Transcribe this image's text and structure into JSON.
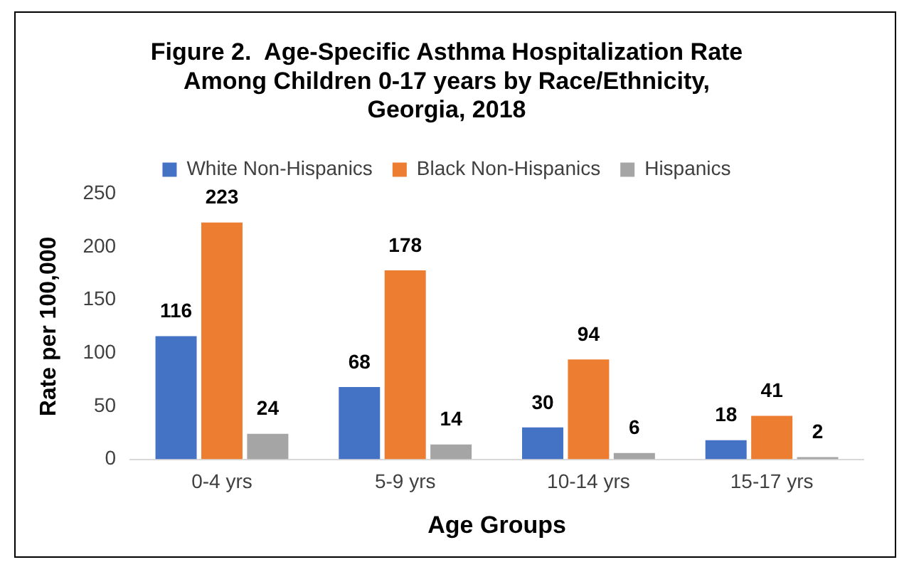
{
  "chart_data": {
    "type": "bar",
    "title": "Figure 2.  Age-Specific Asthma Hospitalization Rate\nAmong Children 0-17 years by Race/Ethnicity,\nGeorgia, 2018",
    "xlabel": "Age Groups",
    "ylabel": "Rate per 100,000",
    "categories": [
      "0-4 yrs",
      "5-9 yrs",
      "10-14 yrs",
      "15-17 yrs"
    ],
    "series": [
      {
        "name": "White Non-Hispanics",
        "color": "#4472c4",
        "values": [
          116,
          68,
          30,
          18
        ]
      },
      {
        "name": "Black Non-Hispanics",
        "color": "#ed7d31",
        "values": [
          223,
          178,
          94,
          41
        ]
      },
      {
        "name": "Hispanics",
        "color": "#a5a5a5",
        "values": [
          24,
          14,
          6,
          2
        ]
      }
    ],
    "ylim": [
      0,
      250
    ],
    "yticks": [
      0,
      50,
      100,
      150,
      200,
      250
    ],
    "grid": false,
    "legend": "top",
    "data_labels": true
  }
}
